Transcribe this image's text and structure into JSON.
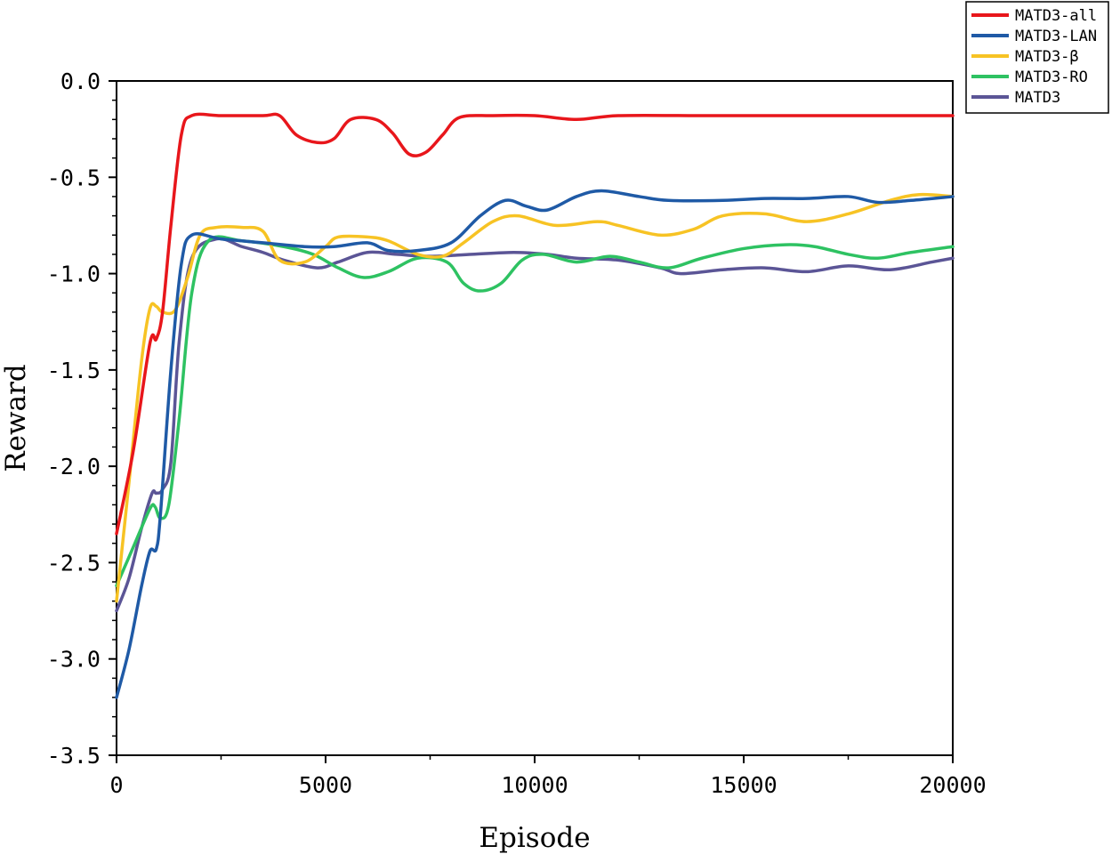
{
  "chart_data": {
    "type": "line",
    "xlabel": "Episode",
    "ylabel": "Reward",
    "xlim": [
      0,
      20000
    ],
    "ylim": [
      -3.5,
      0.0
    ],
    "x_ticks": [
      0,
      5000,
      10000,
      15000,
      20000
    ],
    "x_tick_labels": [
      "0",
      "5000",
      "10000",
      "15000",
      "20000"
    ],
    "y_ticks": [
      0.0,
      -0.5,
      -1.0,
      -1.5,
      -2.0,
      -2.5,
      -3.0,
      -3.5
    ],
    "y_tick_labels": [
      "0.0",
      "-0.5",
      "-1.0",
      "-1.5",
      "-2.0",
      "-2.5",
      "-3.0",
      "-3.5"
    ],
    "grid": false,
    "legend_position": "top-right",
    "series": [
      {
        "name": "MATD3-all",
        "color": "#e8161b",
        "x": [
          0,
          400,
          800,
          950,
          1100,
          1300,
          1550,
          1800,
          2500,
          3500,
          3900,
          4300,
          4800,
          5200,
          5600,
          6200,
          6600,
          7000,
          7400,
          7800,
          8200,
          9000,
          10000,
          11000,
          12000,
          14000,
          16000,
          18000,
          20000
        ],
        "values": [
          -2.35,
          -1.92,
          -1.36,
          -1.34,
          -1.2,
          -0.75,
          -0.28,
          -0.18,
          -0.18,
          -0.18,
          -0.18,
          -0.28,
          -0.32,
          -0.3,
          -0.2,
          -0.2,
          -0.27,
          -0.38,
          -0.37,
          -0.28,
          -0.19,
          -0.18,
          -0.18,
          -0.2,
          -0.18,
          -0.18,
          -0.18,
          -0.18,
          -0.18
        ]
      },
      {
        "name": "MATD3-LAN",
        "color": "#1f5aa6",
        "x": [
          0,
          300,
          600,
          800,
          950,
          1050,
          1300,
          1550,
          1800,
          2500,
          3500,
          4500,
          5200,
          6000,
          6500,
          7200,
          8000,
          8700,
          9300,
          9800,
          10300,
          11000,
          11600,
          12500,
          13200,
          14500,
          15500,
          16500,
          17500,
          18200,
          19000,
          20000
        ],
        "values": [
          -3.2,
          -2.95,
          -2.62,
          -2.44,
          -2.43,
          -2.25,
          -1.5,
          -0.95,
          -0.8,
          -0.82,
          -0.84,
          -0.86,
          -0.86,
          -0.84,
          -0.88,
          -0.88,
          -0.84,
          -0.7,
          -0.62,
          -0.65,
          -0.67,
          -0.6,
          -0.57,
          -0.6,
          -0.62,
          -0.62,
          -0.61,
          -0.61,
          -0.6,
          -0.63,
          -0.62,
          -0.6
        ]
      },
      {
        "name": "MATD3-β",
        "color": "#f7c324",
        "x": [
          0,
          300,
          600,
          800,
          950,
          1100,
          1400,
          1700,
          2000,
          2400,
          3000,
          3500,
          3900,
          4500,
          5000,
          5300,
          6000,
          6500,
          7200,
          7800,
          8300,
          9000,
          9600,
          10500,
          11500,
          12000,
          13000,
          13800,
          14500,
          15500,
          16500,
          17500,
          18500,
          19200,
          20000
        ],
        "values": [
          -2.7,
          -2.08,
          -1.45,
          -1.18,
          -1.17,
          -1.2,
          -1.19,
          -1.02,
          -0.8,
          -0.76,
          -0.76,
          -0.78,
          -0.93,
          -0.94,
          -0.86,
          -0.81,
          -0.81,
          -0.83,
          -0.9,
          -0.91,
          -0.84,
          -0.73,
          -0.7,
          -0.75,
          -0.73,
          -0.75,
          -0.8,
          -0.77,
          -0.7,
          -0.69,
          -0.73,
          -0.69,
          -0.62,
          -0.59,
          -0.6
        ]
      },
      {
        "name": "MATD3-RO",
        "color": "#2ec262",
        "x": [
          0,
          400,
          800,
          920,
          1050,
          1250,
          1500,
          1800,
          2200,
          3000,
          4000,
          4700,
          5300,
          5900,
          6500,
          7200,
          7900,
          8300,
          8700,
          9200,
          9700,
          10200,
          11000,
          11800,
          12500,
          13200,
          14000,
          15000,
          16000,
          16700,
          17500,
          18200,
          19000,
          20000
        ],
        "values": [
          -2.62,
          -2.42,
          -2.22,
          -2.21,
          -2.27,
          -2.2,
          -1.75,
          -1.1,
          -0.83,
          -0.83,
          -0.86,
          -0.9,
          -0.97,
          -1.02,
          -0.99,
          -0.92,
          -0.94,
          -1.05,
          -1.09,
          -1.05,
          -0.93,
          -0.9,
          -0.94,
          -0.91,
          -0.94,
          -0.97,
          -0.92,
          -0.87,
          -0.85,
          -0.86,
          -0.9,
          -0.92,
          -0.89,
          -0.86
        ]
      },
      {
        "name": "MATD3",
        "color": "#5b5596",
        "x": [
          0,
          300,
          600,
          850,
          950,
          1100,
          1300,
          1500,
          1800,
          2400,
          3000,
          3500,
          4000,
          4800,
          5300,
          6000,
          6700,
          7500,
          8500,
          9500,
          10300,
          11000,
          12000,
          13000,
          13500,
          14500,
          15500,
          16500,
          17500,
          18500,
          19500,
          20000
        ],
        "values": [
          -2.75,
          -2.58,
          -2.32,
          -2.14,
          -2.14,
          -2.12,
          -1.98,
          -1.35,
          -0.92,
          -0.82,
          -0.86,
          -0.89,
          -0.93,
          -0.97,
          -0.94,
          -0.89,
          -0.9,
          -0.91,
          -0.9,
          -0.89,
          -0.9,
          -0.92,
          -0.93,
          -0.97,
          -1.0,
          -0.98,
          -0.97,
          -0.99,
          -0.96,
          -0.98,
          -0.94,
          -0.92
        ]
      }
    ]
  }
}
